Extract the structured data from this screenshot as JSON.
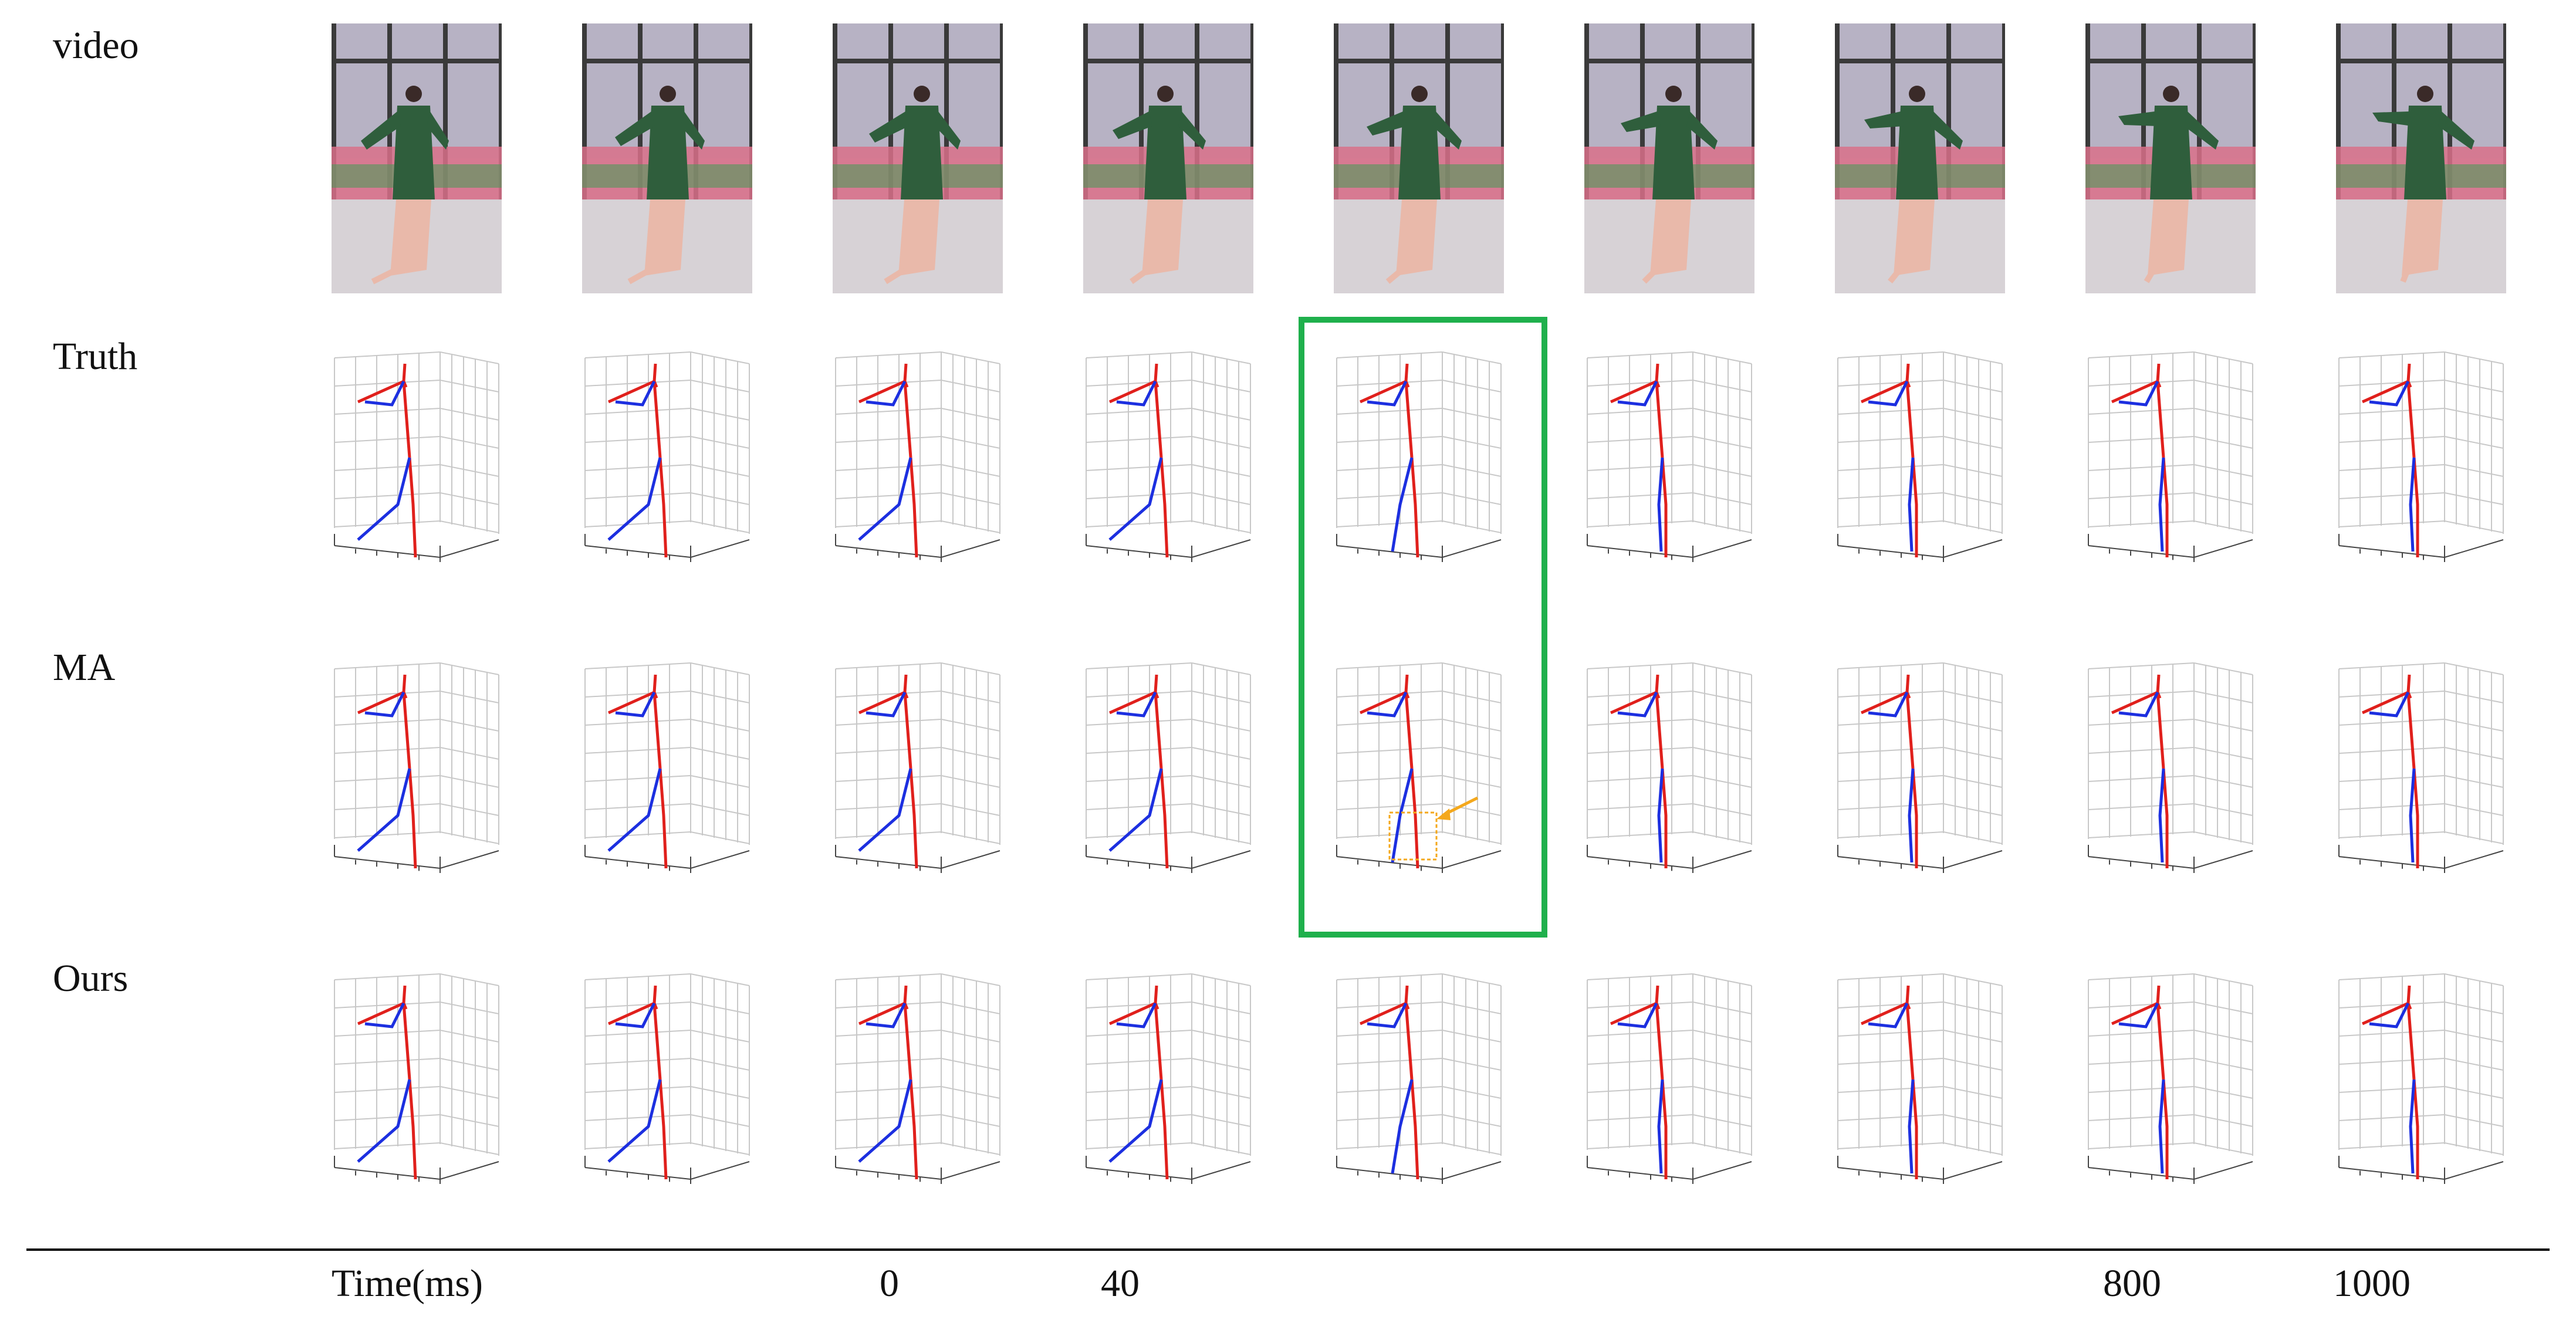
{
  "rows": [
    {
      "key": "video",
      "label": "video"
    },
    {
      "key": "truth",
      "label": "Truth"
    },
    {
      "key": "ma",
      "label": "MA"
    },
    {
      "key": "ours",
      "label": "Ours"
    }
  ],
  "time_axis": {
    "label": "Time(ms)",
    "ticks": [
      {
        "col": 2,
        "text": "0"
      },
      {
        "col": 3,
        "text": "40"
      },
      {
        "col": 7,
        "text": "800"
      },
      {
        "col": 8,
        "text": "1000"
      }
    ]
  },
  "frame_count": 9,
  "highlight_column": 4,
  "annotation": {
    "row": "ma",
    "col": 4,
    "kind": "error-box-with-arrow"
  },
  "colors": {
    "highlight": "#1fb04c",
    "annotation": "#f4a81c",
    "left_limb": "#1c2fe0",
    "right_limb": "#e0201c",
    "grid": "#c8c8c8",
    "separator": "#000000"
  }
}
